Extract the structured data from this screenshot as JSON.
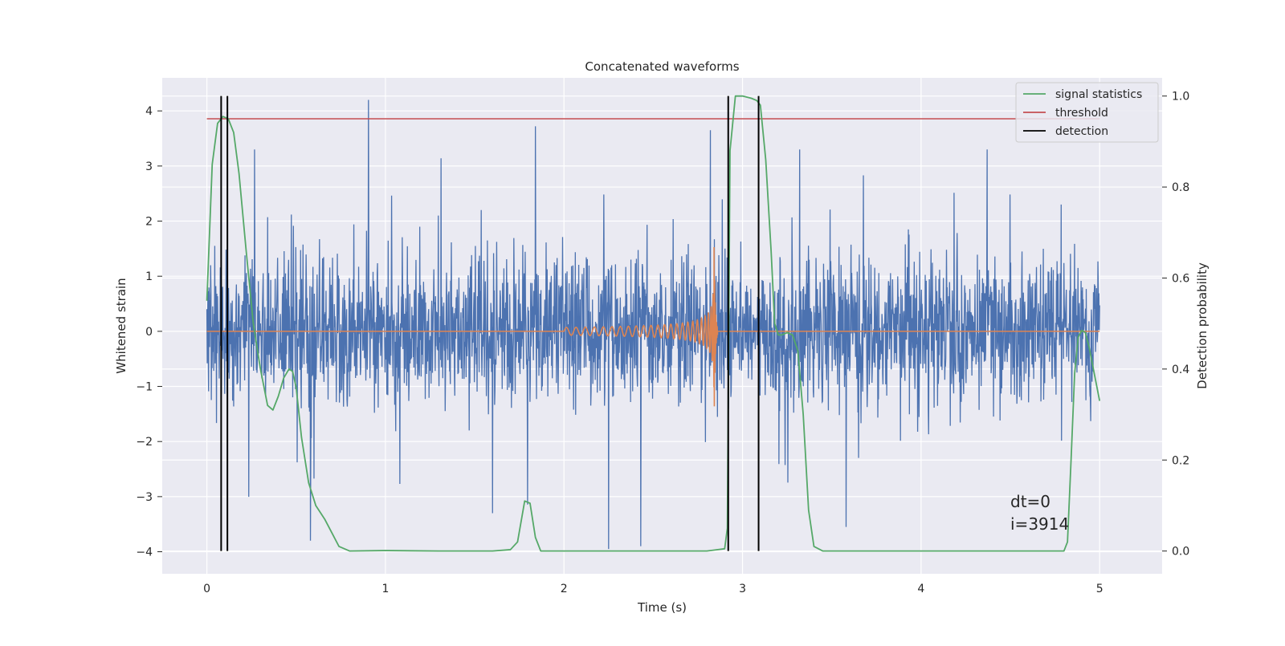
{
  "chart_data": {
    "type": "line",
    "title": "Concatenated waveforms",
    "xlabel": "Time (s)",
    "ylabel": "Whitened strain",
    "y2label": "Detection probability",
    "xlim": [
      -0.25,
      5.35
    ],
    "ylim": [
      -4.4,
      4.6
    ],
    "y2lim": [
      -0.05,
      1.04
    ],
    "xticks": [
      0,
      1,
      2,
      3,
      4,
      5
    ],
    "yticks": [
      -4,
      -3,
      -2,
      -1,
      0,
      1,
      2,
      3,
      4
    ],
    "y2ticks": [
      0.0,
      0.2,
      0.4,
      0.6,
      0.8,
      1.0
    ],
    "grid": true,
    "legend_position": "top-right",
    "series": [
      {
        "name": "signal statistics",
        "axis": "right",
        "color": "#55a868",
        "x": [
          0.0,
          0.03,
          0.06,
          0.09,
          0.12,
          0.15,
          0.18,
          0.22,
          0.26,
          0.3,
          0.34,
          0.37,
          0.4,
          0.43,
          0.46,
          0.48,
          0.5,
          0.53,
          0.57,
          0.61,
          0.66,
          0.7,
          0.74,
          0.8,
          1.0,
          1.3,
          1.6,
          1.7,
          1.74,
          1.78,
          1.81,
          1.84,
          1.87,
          1.9,
          2.0,
          2.5,
          2.8,
          2.9,
          2.915,
          2.93,
          2.96,
          3.0,
          3.05,
          3.08,
          3.1,
          3.13,
          3.16,
          3.18,
          3.2,
          3.22,
          3.25,
          3.28,
          3.31,
          3.34,
          3.37,
          3.4,
          3.45,
          3.6,
          4.0,
          4.5,
          4.8,
          4.82,
          4.84,
          4.86,
          4.88,
          4.9,
          4.92,
          4.94,
          4.96,
          4.98,
          5.0
        ],
        "y": [
          0.55,
          0.85,
          0.94,
          0.955,
          0.95,
          0.92,
          0.83,
          0.66,
          0.5,
          0.4,
          0.32,
          0.31,
          0.34,
          0.38,
          0.4,
          0.395,
          0.36,
          0.25,
          0.15,
          0.1,
          0.07,
          0.04,
          0.01,
          0.0,
          0.001,
          0.0,
          0.0,
          0.003,
          0.02,
          0.11,
          0.105,
          0.03,
          0.0,
          0.0,
          0.0,
          0.0,
          0.0,
          0.005,
          0.05,
          0.88,
          1.0,
          1.0,
          0.995,
          0.99,
          0.98,
          0.86,
          0.66,
          0.5,
          0.475,
          0.475,
          0.48,
          0.475,
          0.44,
          0.3,
          0.09,
          0.01,
          0.0,
          0.0,
          0.0,
          0.0,
          0.0,
          0.02,
          0.2,
          0.39,
          0.47,
          0.485,
          0.48,
          0.45,
          0.41,
          0.37,
          0.33
        ]
      },
      {
        "name": "threshold",
        "axis": "right",
        "color": "#c44e52",
        "x": [
          0,
          5
        ],
        "y": [
          0.95,
          0.95
        ]
      },
      {
        "name": "detection",
        "axis": "right",
        "color": "#000000",
        "vlines": [
          0.08,
          0.115,
          2.92,
          3.09
        ],
        "ymin": 0.0,
        "ymax": 1.0
      }
    ],
    "noise": {
      "name": "whitened strain",
      "axis": "left",
      "color": "#4c72b0",
      "x_range": [
        0,
        5
      ],
      "typical_amplitude": 1.4,
      "peak_max": 4.2,
      "peak_min": -3.95
    },
    "injected_waveform": {
      "name": "injected chirp",
      "axis": "left",
      "color": "#dd8452",
      "start": 2.0,
      "merger": 2.84,
      "end": 2.86,
      "start_amplitude": 0.07,
      "peak_amplitude": 1.9
    },
    "annotations": [
      "dt=0",
      "i=3914"
    ]
  }
}
